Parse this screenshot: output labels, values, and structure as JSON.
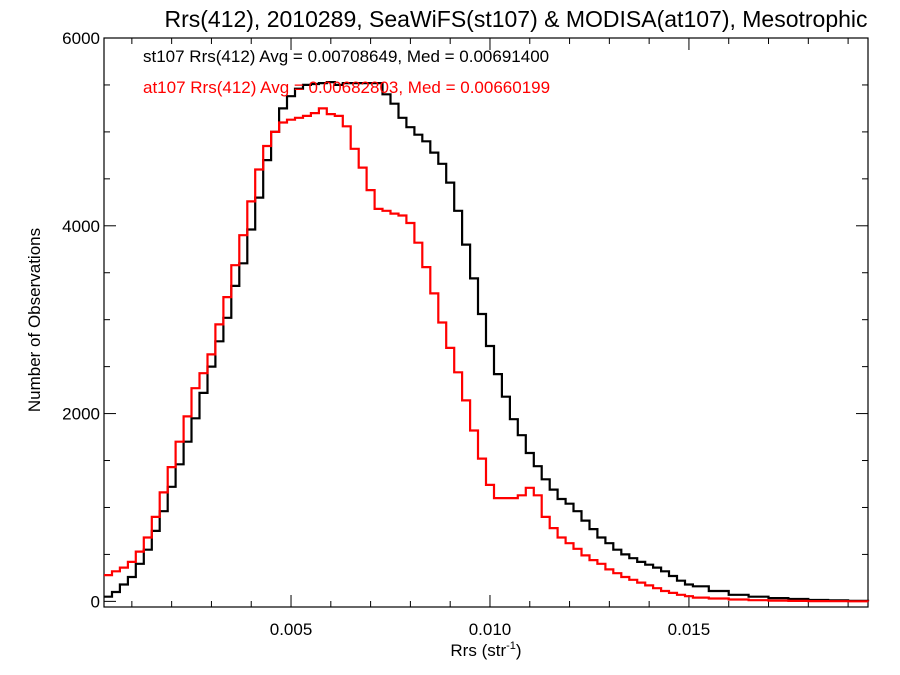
{
  "chart_data": {
    "type": "line",
    "step": true,
    "title": "Rrs(412), 2010289, SeaWiFS(st107) & MODISA(at107), Mesotrophic",
    "xlabel": "Rrs (str",
    "xlabel_sup": "-1",
    "xlabel_end": ")",
    "ylabel": "Number of Observations",
    "xlim": [
      0.0003,
      0.0195
    ],
    "ylim": [
      -60,
      6000
    ],
    "xticks": [
      0.005,
      0.01,
      0.015
    ],
    "xtick_labels": [
      "0.005",
      "0.010",
      "0.015"
    ],
    "yticks": [
      0,
      2000,
      4000,
      6000
    ],
    "ytick_labels": [
      "0",
      "2000",
      "4000",
      "6000"
    ],
    "grid": false,
    "series": [
      {
        "name": "st107",
        "color": "#000000",
        "label": "st107 Rrs(412) Avg = 0.00708649, Med = 0.00691400",
        "x": [
          0.0003,
          0.0005,
          0.0007,
          0.0009,
          0.0011,
          0.0013,
          0.0015,
          0.0017,
          0.0019,
          0.0021,
          0.0023,
          0.0025,
          0.0027,
          0.0029,
          0.0031,
          0.0033,
          0.0035,
          0.0037,
          0.0039,
          0.0041,
          0.0043,
          0.0045,
          0.0047,
          0.0049,
          0.0051,
          0.0053,
          0.0055,
          0.0057,
          0.0059,
          0.0061,
          0.0063,
          0.0065,
          0.0067,
          0.0069,
          0.0071,
          0.0073,
          0.0075,
          0.0077,
          0.0079,
          0.0081,
          0.0083,
          0.0085,
          0.0087,
          0.0089,
          0.0091,
          0.0093,
          0.0095,
          0.0097,
          0.0099,
          0.0101,
          0.0103,
          0.0105,
          0.0107,
          0.0109,
          0.0111,
          0.0113,
          0.0115,
          0.0117,
          0.0119,
          0.0121,
          0.0123,
          0.0125,
          0.0127,
          0.0129,
          0.0131,
          0.0133,
          0.0135,
          0.0137,
          0.0139,
          0.0141,
          0.0143,
          0.0145,
          0.0147,
          0.0149,
          0.0151,
          0.0155,
          0.016,
          0.0165,
          0.017,
          0.0175,
          0.018,
          0.0185,
          0.019,
          0.0195
        ],
        "y": [
          50,
          100,
          180,
          260,
          400,
          550,
          750,
          960,
          1220,
          1460,
          1700,
          1950,
          2220,
          2500,
          2770,
          3020,
          3360,
          3600,
          3960,
          4300,
          4700,
          5000,
          5250,
          5380,
          5460,
          5500,
          5510,
          5520,
          5530,
          5500,
          5520,
          5520,
          5520,
          5520,
          5520,
          5400,
          5300,
          5150,
          5050,
          4970,
          4900,
          4780,
          4660,
          4460,
          4160,
          3800,
          3440,
          3060,
          2720,
          2420,
          2180,
          1940,
          1770,
          1580,
          1440,
          1300,
          1190,
          1090,
          1040,
          960,
          860,
          770,
          680,
          620,
          550,
          500,
          460,
          420,
          390,
          360,
          320,
          270,
          220,
          180,
          160,
          110,
          70,
          50,
          35,
          25,
          15,
          10,
          5,
          0
        ]
      },
      {
        "name": "at107",
        "color": "#ff0000",
        "label": "at107 Rrs(412) Avg = 0.00682803, Med = 0.00660199",
        "x": [
          0.0003,
          0.0005,
          0.0007,
          0.0009,
          0.0011,
          0.0013,
          0.0015,
          0.0017,
          0.0019,
          0.0021,
          0.0023,
          0.0025,
          0.0027,
          0.0029,
          0.0031,
          0.0033,
          0.0035,
          0.0037,
          0.0039,
          0.0041,
          0.0043,
          0.0045,
          0.0047,
          0.0049,
          0.0051,
          0.0053,
          0.0055,
          0.0057,
          0.0059,
          0.0061,
          0.0063,
          0.0065,
          0.0067,
          0.0069,
          0.0071,
          0.0073,
          0.0075,
          0.0077,
          0.0079,
          0.0081,
          0.0083,
          0.0085,
          0.0087,
          0.0089,
          0.0091,
          0.0093,
          0.0095,
          0.0097,
          0.0099,
          0.0101,
          0.0103,
          0.0105,
          0.0107,
          0.0109,
          0.0111,
          0.0113,
          0.0115,
          0.0117,
          0.0119,
          0.0121,
          0.0123,
          0.0125,
          0.0127,
          0.0129,
          0.0131,
          0.0133,
          0.0135,
          0.0137,
          0.0139,
          0.0141,
          0.0143,
          0.0145,
          0.0147,
          0.0149,
          0.0151,
          0.0155,
          0.016,
          0.0165,
          0.017,
          0.0175,
          0.018,
          0.0185,
          0.019,
          0.0195
        ],
        "y": [
          280,
          320,
          360,
          420,
          530,
          680,
          900,
          1160,
          1430,
          1700,
          1970,
          2270,
          2430,
          2630,
          2950,
          3240,
          3580,
          3900,
          4260,
          4600,
          4850,
          5000,
          5100,
          5130,
          5150,
          5170,
          5200,
          5250,
          5190,
          5170,
          5060,
          4820,
          4620,
          4380,
          4180,
          4160,
          4130,
          4110,
          4030,
          3820,
          3560,
          3280,
          2970,
          2700,
          2440,
          2140,
          1820,
          1520,
          1240,
          1100,
          1100,
          1100,
          1130,
          1210,
          1130,
          900,
          780,
          680,
          620,
          560,
          490,
          440,
          400,
          340,
          300,
          260,
          230,
          200,
          170,
          140,
          110,
          90,
          70,
          55,
          40,
          30,
          20,
          12,
          8,
          5,
          3,
          2,
          1,
          0
        ]
      }
    ]
  }
}
